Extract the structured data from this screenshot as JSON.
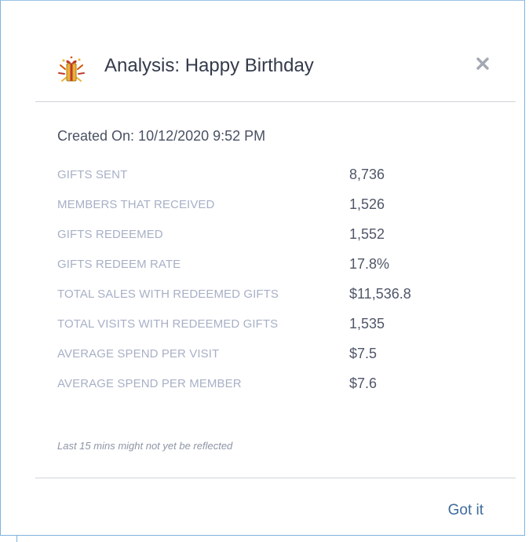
{
  "dialog": {
    "title": "Analysis: Happy Birthday",
    "created_on": "Created On: 10/12/2020 9:52 PM",
    "stats": [
      {
        "label": "GIFTS SENT",
        "value": "8,736"
      },
      {
        "label": "MEMBERS THAT RECEIVED",
        "value": "1,526"
      },
      {
        "label": "GIFTS REDEEMED",
        "value": "1,552"
      },
      {
        "label": "GIFTS REDEEM RATE",
        "value": "17.8%"
      },
      {
        "label": "TOTAL SALES WITH REDEEMED GIFTS",
        "value": "$11,536.8"
      },
      {
        "label": "TOTAL VISITS WITH REDEEMED GIFTS",
        "value": "1,535"
      },
      {
        "label": "AVERAGE SPEND PER VISIT",
        "value": "$7.5"
      },
      {
        "label": "AVERAGE SPEND PER MEMBER",
        "value": "$7.6"
      }
    ],
    "note": "Last 15 mins might not yet be reflected",
    "confirm_label": "Got it",
    "icons": {
      "header": "gift-celebration-icon",
      "close": "close-icon"
    },
    "colors": {
      "title": "#333a4a",
      "label": "#a8b0c6",
      "value": "#4f5668",
      "link": "#3d6b9c",
      "icon_gold": "#e8b23a",
      "icon_red": "#c0392b",
      "border": "#7fb2dd"
    }
  }
}
